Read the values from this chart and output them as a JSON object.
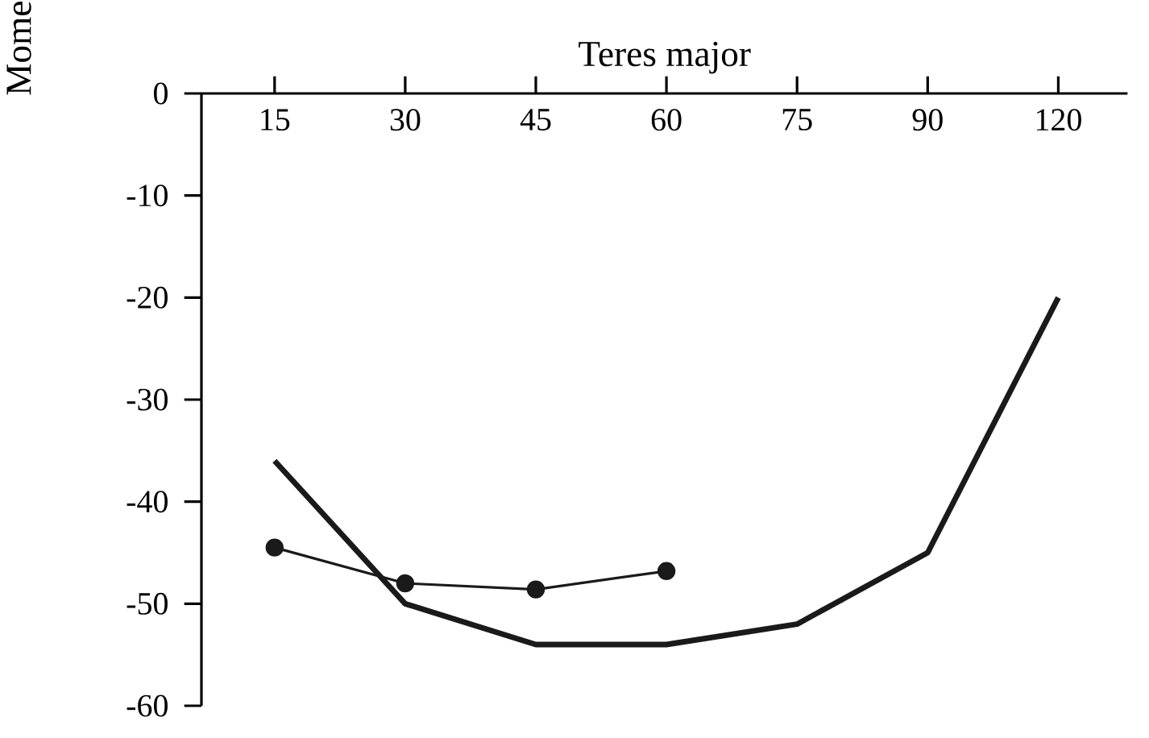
{
  "chart_data": {
    "type": "line",
    "title": "Teres major",
    "ylabel": "Mome",
    "categories": [
      "15",
      "30",
      "45",
      "60",
      "75",
      "90",
      "120"
    ],
    "ylim": [
      -60,
      0
    ],
    "yticks": [
      0,
      -10,
      -20,
      -30,
      -40,
      -50,
      -60
    ],
    "grid": false,
    "series": [
      {
        "color": "#1a1a1a",
        "values": [
          -36,
          -50,
          -54,
          -54,
          -52,
          -45,
          -20
        ],
        "marker": "none"
      },
      {
        "color": "#1a1a1a",
        "values": [
          -44.5,
          -48,
          -48.6,
          -46.8,
          null,
          null,
          null
        ],
        "marker": "circle"
      }
    ]
  }
}
